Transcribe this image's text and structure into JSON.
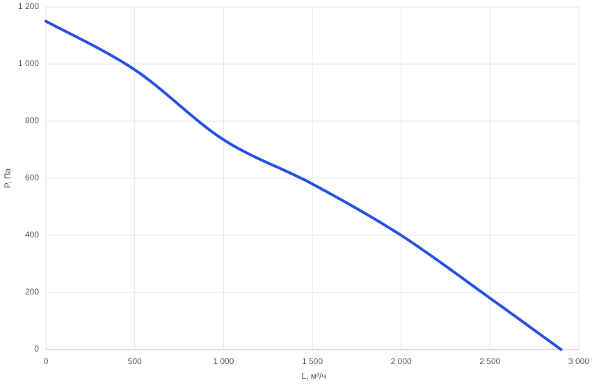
{
  "chart_data": {
    "type": "line",
    "x_label": "L, м³/ч",
    "y_label": "P, Па",
    "x": [
      0,
      500,
      1000,
      1500,
      2000,
      2500,
      2900
    ],
    "series": [
      {
        "color": "#2652e3",
        "values": [
          1150,
          980,
          735,
          580,
          400,
          180,
          0
        ]
      }
    ],
    "xlim": [
      0,
      3000
    ],
    "xticks": [
      0,
      500,
      {
        "value": 1000,
        "label": "1 000"
      },
      {
        "value": 1500,
        "label": "1 500"
      },
      {
        "value": 2000,
        "label": "2 000"
      },
      {
        "value": 2500,
        "label": "2 500"
      },
      {
        "value": 3000,
        "label": "3 000"
      }
    ],
    "ylim": [
      0,
      1200
    ],
    "yticks": [
      0,
      200,
      400,
      600,
      800,
      {
        "value": 1000,
        "label": "1 000"
      },
      {
        "value": 1200,
        "label": "1 200"
      }
    ],
    "grid": true
  }
}
